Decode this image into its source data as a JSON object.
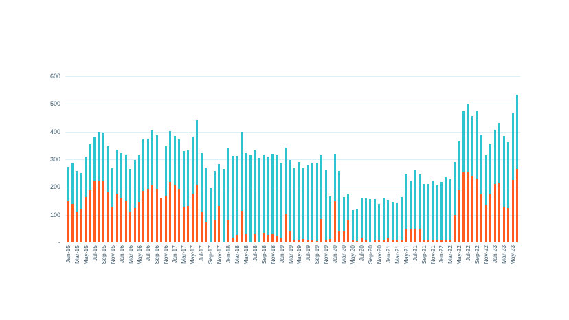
{
  "chart_data": {
    "type": "bar",
    "title": "",
    "xlabel": "",
    "ylabel": "",
    "ylim": [
      0,
      600
    ],
    "yticks": [
      "-",
      "100",
      "200",
      "300",
      "400",
      "500",
      "600"
    ],
    "grid": true,
    "legend": "none",
    "overlay": true,
    "colors": {
      "total": "#2ec4cf",
      "subset": "#ff5a1f",
      "grid": "#d8f0f7",
      "text": "#3d5a6c"
    },
    "categories": [
      "Jan-15",
      "Feb-15",
      "Mar-15",
      "Apr-15",
      "May-15",
      "Jun-15",
      "Jul-15",
      "Aug-15",
      "Sep-15",
      "Oct-15",
      "Nov-15",
      "Dec-15",
      "Jan-16",
      "Feb-16",
      "Mar-16",
      "Apr-16",
      "May-16",
      "Jun-16",
      "Jul-16",
      "Aug-16",
      "Sep-16",
      "Oct-16",
      "Nov-16",
      "Dec-16",
      "Jan-17",
      "Feb-17",
      "Mar-17",
      "Apr-17",
      "May-17",
      "Jun-17",
      "Jul-17",
      "Aug-17",
      "Sep-17",
      "Oct-17",
      "Nov-17",
      "Dec-17",
      "Jan-18",
      "Feb-18",
      "Mar-18",
      "Apr-18",
      "May-18",
      "Jun-18",
      "Jul-18",
      "Aug-18",
      "Sep-18",
      "Oct-18",
      "Nov-18",
      "Dec-18",
      "Jan-19",
      "Feb-19",
      "Mar-19",
      "Apr-19",
      "May-19",
      "Jun-19",
      "Jul-19",
      "Aug-19",
      "Sep-19",
      "Oct-19",
      "Nov-19",
      "Dec-19",
      "Jan-20",
      "Feb-20",
      "Mar-20",
      "Apr-20",
      "May-20",
      "Jun-20",
      "Jul-20",
      "Aug-20",
      "Sep-20",
      "Oct-20",
      "Nov-20",
      "Dec-20",
      "Jan-21",
      "Feb-21",
      "Mar-21",
      "Apr-21",
      "May-21",
      "Jun-21",
      "Jul-21",
      "Aug-21",
      "Sep-21",
      "Oct-21",
      "Nov-21",
      "Dec-21",
      "Jan-22",
      "Feb-22",
      "Mar-22",
      "Apr-22",
      "May-22",
      "Jun-22",
      "Jul-22",
      "Aug-22",
      "Sep-22",
      "Oct-22",
      "Nov-22",
      "Dec-22",
      "Jan-23",
      "Feb-23",
      "Mar-23",
      "Apr-23",
      "May-23",
      "Jun-23"
    ],
    "xtick_labels": [
      "Jan-15",
      "Mar-15",
      "May-15",
      "Jul-15",
      "Sep-15",
      "Nov-15",
      "Jan-16",
      "Mar-16",
      "May-16",
      "Jul-16",
      "Sep-16",
      "Nov-16",
      "Jan-17",
      "Mar-17",
      "May-17",
      "Jul-17",
      "Sep-17",
      "Nov-17",
      "Jan-18",
      "Mar-18",
      "May-18",
      "Jul-18",
      "Sep-18",
      "Nov-18",
      "Jan-19",
      "Mar-19",
      "May-19",
      "Jul-19",
      "Sep-19",
      "Nov-19",
      "Jan-20",
      "Mar-20",
      "May-20",
      "Jul-20",
      "Sep-20",
      "Nov-20",
      "Jan-21",
      "Mar-21",
      "May-21",
      "Jul-21",
      "Sep-21",
      "Nov-21",
      "Jan-22",
      "Mar-22",
      "May-22",
      "Jul-22",
      "Sep-22",
      "Nov-22",
      "Jan-23",
      "Mar-23",
      "May-23"
    ],
    "series": [
      {
        "name": "Total",
        "color": "#2ec4cf",
        "values": [
          272,
          288,
          257,
          250,
          310,
          355,
          379,
          399,
          396,
          348,
          269,
          335,
          323,
          317,
          265,
          298,
          315,
          372,
          375,
          404,
          386,
          161,
          348,
          402,
          384,
          372,
          330,
          332,
          382,
          441,
          322,
          270,
          196,
          258,
          282,
          266,
          340,
          312,
          312,
          398,
          322,
          315,
          333,
          305,
          317,
          311,
          320,
          318,
          285,
          342,
          297,
          268,
          290,
          267,
          281,
          287,
          288,
          318,
          261,
          166,
          320,
          258,
          164,
          173,
          117,
          122,
          161,
          158,
          156,
          155,
          139,
          161,
          153,
          146,
          143,
          163,
          245,
          224,
          260,
          247,
          211,
          211,
          224,
          207,
          217,
          236,
          228,
          289,
          365,
          473,
          501,
          456,
          473,
          389,
          315,
          355,
          407,
          432,
          384,
          362,
          469,
          533
        ]
      },
      {
        "name": "Subset",
        "color": "#ff5a1f",
        "values": [
          150,
          140,
          111,
          118,
          164,
          189,
          222,
          220,
          222,
          184,
          126,
          176,
          161,
          151,
          109,
          123,
          146,
          186,
          193,
          206,
          194,
          161,
          168,
          217,
          208,
          194,
          129,
          131,
          176,
          208,
          109,
          72,
          0,
          82,
          131,
          0,
          79,
          17,
          27,
          114,
          30,
          0,
          30,
          0,
          33,
          28,
          30,
          23,
          17,
          101,
          42,
          10,
          11,
          12,
          8,
          8,
          6,
          84,
          8,
          12,
          148,
          40,
          40,
          80,
          8,
          6,
          17,
          10,
          0,
          8,
          8,
          8,
          18,
          8,
          8,
          8,
          50,
          50,
          50,
          50,
          8,
          8,
          8,
          8,
          8,
          8,
          8,
          99,
          189,
          253,
          253,
          238,
          231,
          174,
          137,
          176,
          211,
          216,
          129,
          124,
          226,
          265
        ]
      }
    ]
  }
}
